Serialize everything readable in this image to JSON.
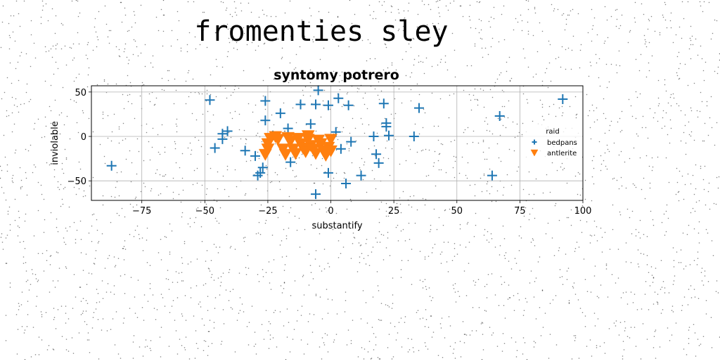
{
  "figure_title": "fromenties sley",
  "colors": {
    "series_1": "#1f77b4",
    "series_2": "#ff7f0e"
  },
  "chart_data": {
    "type": "scatter",
    "title": "syntomy potrero",
    "xlabel": "substantify",
    "ylabel": "inviolable",
    "xlim": [
      -95,
      100
    ],
    "ylim": [
      -72,
      57
    ],
    "x_ticks": [
      -75,
      -50,
      -25,
      0,
      25,
      50,
      75,
      100
    ],
    "x_tick_labels": [
      "−75",
      "−50",
      "−25",
      "0",
      "25",
      "50",
      "75",
      "100"
    ],
    "y_ticks": [
      -50,
      0,
      50
    ],
    "y_tick_labels": [
      "−50",
      "0",
      "50"
    ],
    "grid": true,
    "legend": {
      "title": "raid",
      "placement": "right"
    },
    "series": [
      {
        "name": "bedpans",
        "marker": "plus",
        "color": "#1f77b4",
        "points": [
          [
            -87,
            -33
          ],
          [
            -48,
            41
          ],
          [
            -46,
            -13
          ],
          [
            -43,
            3
          ],
          [
            -43,
            -3
          ],
          [
            -41,
            6
          ],
          [
            -34,
            -16
          ],
          [
            -30,
            -22
          ],
          [
            -29,
            -44
          ],
          [
            -28,
            -41
          ],
          [
            -27,
            -35
          ],
          [
            -26,
            40
          ],
          [
            -26,
            18
          ],
          [
            -23,
            1
          ],
          [
            -20,
            26
          ],
          [
            -17,
            9
          ],
          [
            -16,
            -29
          ],
          [
            -12,
            36
          ],
          [
            -8,
            14
          ],
          [
            -6,
            36
          ],
          [
            -5,
            52
          ],
          [
            -6,
            -65
          ],
          [
            -2,
            -18
          ],
          [
            -1,
            35
          ],
          [
            -1,
            -41
          ],
          [
            2,
            5
          ],
          [
            3,
            43
          ],
          [
            4,
            -14
          ],
          [
            6,
            -53
          ],
          [
            7,
            35
          ],
          [
            8,
            -6
          ],
          [
            12,
            -44
          ],
          [
            17,
            0
          ],
          [
            18,
            -20
          ],
          [
            19,
            -30
          ],
          [
            21,
            37
          ],
          [
            22,
            11
          ],
          [
            22,
            15
          ],
          [
            23,
            1
          ],
          [
            33,
            0
          ],
          [
            35,
            32
          ],
          [
            64,
            -44
          ],
          [
            67,
            23
          ],
          [
            92,
            42
          ]
        ]
      },
      {
        "name": "antlerite",
        "marker": "triangle-down",
        "color": "#ff7f0e",
        "points": [
          [
            -26,
            -20
          ],
          [
            -25,
            -14
          ],
          [
            -25,
            -8
          ],
          [
            -24,
            -2
          ],
          [
            -22,
            0
          ],
          [
            -21,
            -3
          ],
          [
            -19,
            -14
          ],
          [
            -18,
            -20
          ],
          [
            -17,
            -1
          ],
          [
            -16,
            -5
          ],
          [
            -15,
            -14
          ],
          [
            -14,
            -19
          ],
          [
            -13,
            -2
          ],
          [
            -12,
            -8
          ],
          [
            -11,
            -13
          ],
          [
            -10,
            -17
          ],
          [
            -9,
            -3
          ],
          [
            -9,
            1
          ],
          [
            -8,
            -10
          ],
          [
            -7,
            -14
          ],
          [
            -6,
            -19
          ],
          [
            -5,
            -4
          ],
          [
            -4,
            -8
          ],
          [
            -3,
            -16
          ],
          [
            -2,
            -21
          ],
          [
            -1,
            -12
          ],
          [
            0,
            -3
          ],
          [
            0,
            -16
          ]
        ]
      }
    ]
  }
}
